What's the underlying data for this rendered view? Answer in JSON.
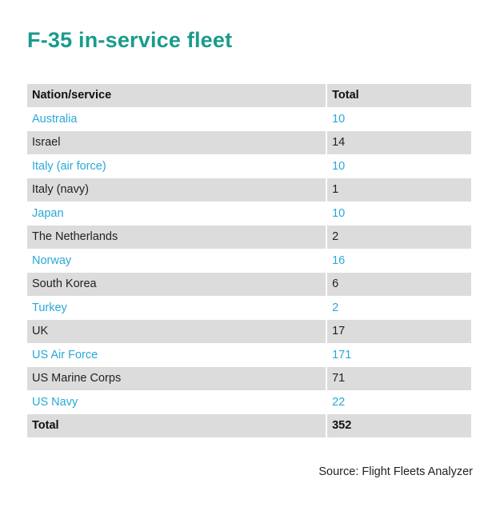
{
  "title": "F-35 in-service fleet",
  "source": "Source: Flight Fleets Analyzer",
  "colors": {
    "title": "#1a9b8c",
    "highlight_text": "#29a9d8",
    "row_shade": "#dcdcdc"
  },
  "chart_data": {
    "type": "table",
    "title": "F-35 in-service fleet",
    "columns": [
      "Nation/service",
      "Total"
    ],
    "rows": [
      {
        "name": "Australia",
        "total": "10"
      },
      {
        "name": "Israel",
        "total": "14"
      },
      {
        "name": "Italy (air force)",
        "total": "10"
      },
      {
        "name": "Italy (navy)",
        "total": "1"
      },
      {
        "name": "Japan",
        "total": "10"
      },
      {
        "name": "The Netherlands",
        "total": "2"
      },
      {
        "name": "Norway",
        "total": "16"
      },
      {
        "name": "South Korea",
        "total": "6"
      },
      {
        "name": "Turkey",
        "total": "2"
      },
      {
        "name": "UK",
        "total": "17"
      },
      {
        "name": "US Air Force",
        "total": "171"
      },
      {
        "name": "US Marine Corps",
        "total": "71"
      },
      {
        "name": "US Navy",
        "total": "22"
      }
    ],
    "total_row": {
      "name": "Total",
      "total": "352"
    }
  }
}
